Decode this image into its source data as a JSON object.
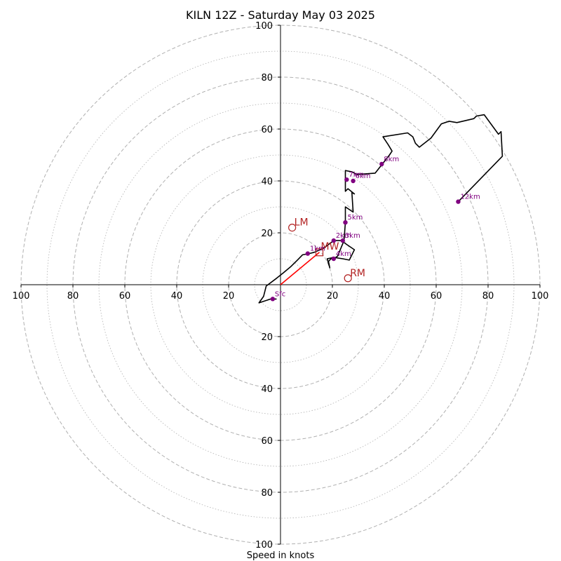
{
  "chart_data": {
    "type": "hodograph",
    "title": "KILN 12Z - Saturday May 03 2025",
    "xlabel": "Speed in knots",
    "ring_max": 100,
    "ring_labels": [
      "20",
      "40",
      "60",
      "80",
      "100"
    ],
    "x_tick_labels": [
      "100",
      "80",
      "60",
      "40",
      "20",
      "20",
      "40",
      "60",
      "80",
      "100"
    ],
    "y_tick_labels_top": [
      "100",
      "80",
      "60",
      "40",
      "20"
    ],
    "y_tick_labels_bottom": [
      "20",
      "40",
      "60",
      "80",
      "100"
    ],
    "grid": true,
    "colors": {
      "trace": "#000000",
      "height_points": "#800080",
      "storm_motion": "#b22222",
      "mean_wind_vector": "#ff0000",
      "grid": "#b0b0b0"
    },
    "trace": [
      [
        -1.5,
        -5.5
      ],
      [
        -3.8,
        -5.5
      ],
      [
        -8.3,
        -7.0
      ],
      [
        -6.5,
        -4.5
      ],
      [
        -5.5,
        -0.5
      ],
      [
        -1.5,
        2.5
      ],
      [
        1.0,
        4.5
      ],
      [
        4.0,
        7.0
      ],
      [
        6.5,
        9.5
      ],
      [
        8.5,
        11.5
      ],
      [
        11.0,
        12.0
      ],
      [
        13.0,
        12.5
      ],
      [
        16.5,
        14.0
      ],
      [
        20.5,
        17.0
      ],
      [
        23.5,
        17.0
      ],
      [
        25.5,
        15.5
      ],
      [
        28.5,
        13.5
      ],
      [
        26.5,
        9.5
      ],
      [
        24.0,
        10.0
      ],
      [
        20.5,
        10.5
      ],
      [
        18.0,
        10.0
      ],
      [
        19.0,
        6.5
      ],
      [
        18.5,
        9.0
      ],
      [
        20.0,
        10.5
      ],
      [
        20.5,
        10.0
      ],
      [
        22.0,
        11.0
      ],
      [
        24.5,
        17.0
      ],
      [
        25.0,
        24.0
      ],
      [
        25.0,
        30.0
      ],
      [
        28.0,
        28.0
      ],
      [
        27.5,
        35.5
      ],
      [
        28.5,
        35.0
      ],
      [
        26.0,
        37.0
      ],
      [
        25.0,
        36.0
      ],
      [
        25.0,
        40.0
      ],
      [
        25.0,
        44.0
      ],
      [
        27.5,
        43.5
      ],
      [
        29.5,
        42.5
      ],
      [
        36.5,
        43.0
      ],
      [
        42.0,
        50.0
      ],
      [
        43.0,
        51.5
      ],
      [
        41.5,
        54.0
      ],
      [
        39.5,
        57.0
      ],
      [
        49.0,
        58.5
      ],
      [
        51.0,
        57.0
      ],
      [
        52.0,
        54.5
      ],
      [
        53.5,
        53.0
      ],
      [
        58.0,
        56.5
      ],
      [
        62.0,
        62.0
      ],
      [
        65.0,
        63.0
      ],
      [
        68.0,
        62.5
      ],
      [
        74.5,
        64.0
      ],
      [
        75.5,
        65.0
      ],
      [
        78.5,
        65.5
      ],
      [
        84.0,
        58.0
      ],
      [
        85.0,
        59.0
      ],
      [
        85.5,
        49.5
      ],
      [
        68.5,
        32.0
      ]
    ],
    "height_points": [
      {
        "label": "Sfc",
        "u": -3.0,
        "v": -5.5
      },
      {
        "label": "1km",
        "u": 10.5,
        "v": 12.0
      },
      {
        "label": "2km",
        "u": 20.5,
        "v": 17.0
      },
      {
        "label": "3km",
        "u": 24.0,
        "v": 17.0
      },
      {
        "label": "4km",
        "u": 20.5,
        "v": 10.0
      },
      {
        "label": "5km",
        "u": 25.0,
        "v": 24.0
      },
      {
        "label": "6km",
        "u": 28.0,
        "v": 40.0
      },
      {
        "label": "7km",
        "u": 25.5,
        "v": 40.5
      },
      {
        "label": "8km",
        "u": 39.0,
        "v": 46.5
      },
      {
        "label": "12km",
        "u": 68.5,
        "v": 32.0
      }
    ],
    "storm_motion": [
      {
        "label": "LM",
        "u": 4.5,
        "v": 22.0
      },
      {
        "label": "RM",
        "u": 26.0,
        "v": 2.5
      }
    ],
    "mean_wind": {
      "label": "MW",
      "u": 15.0,
      "v": 12.5
    }
  }
}
